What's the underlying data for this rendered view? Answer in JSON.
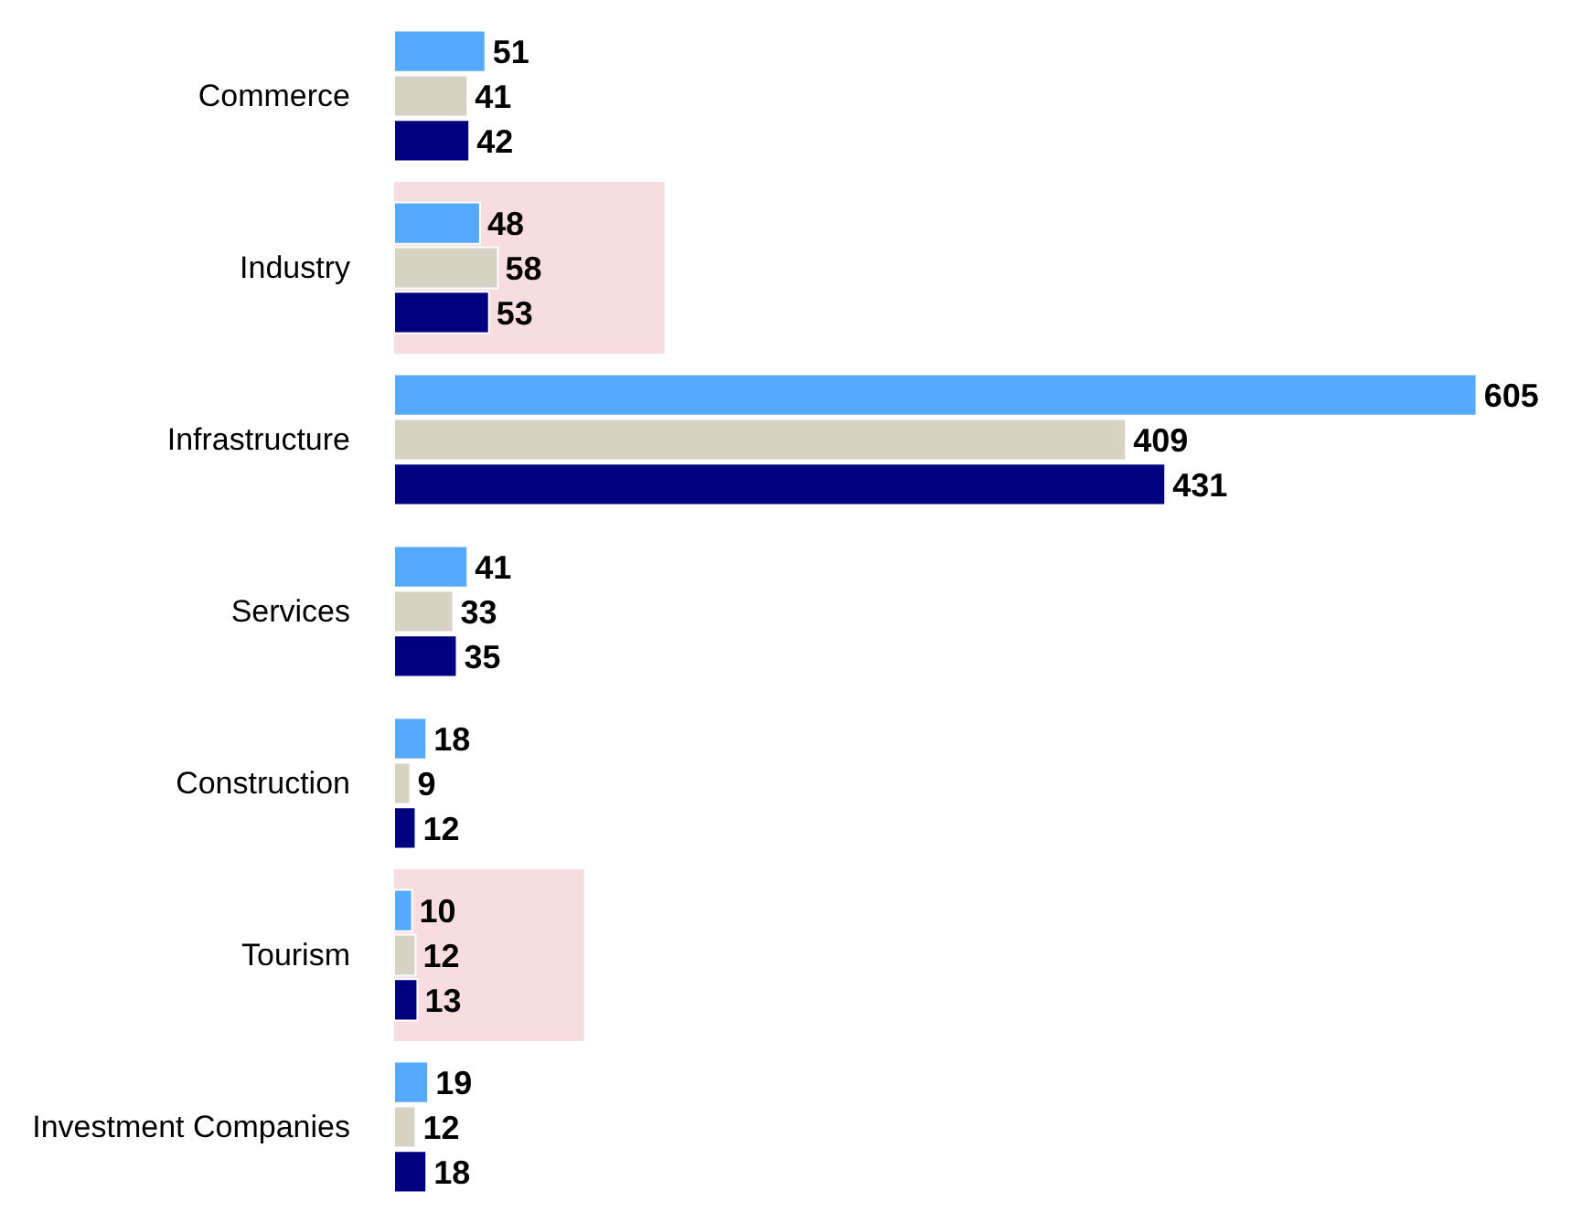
{
  "chart_data": {
    "type": "bar",
    "orientation": "horizontal",
    "data_labels": true,
    "grid": false,
    "tick_labels": "y",
    "categories": [
      "Commerce",
      "Industry",
      "Infrastructure",
      "Services",
      "Construction",
      "Tourism",
      "Investment Companies"
    ],
    "series": [
      {
        "color": "#55aaff",
        "values": [
          51,
          48,
          605,
          41,
          18,
          10,
          19
        ]
      },
      {
        "color": "#d6d2c4",
        "values": [
          41,
          58,
          409,
          33,
          9,
          12,
          12
        ]
      },
      {
        "color": "#000080",
        "values": [
          42,
          53,
          431,
          35,
          12,
          13,
          18
        ]
      }
    ],
    "bands": [
      {
        "axis": "y",
        "from": "Industry",
        "to": "Industry",
        "color": "#f8dde0"
      },
      {
        "axis": "y",
        "from": "Tourism",
        "to": "Tourism",
        "color": "#f8dde0"
      }
    ]
  }
}
